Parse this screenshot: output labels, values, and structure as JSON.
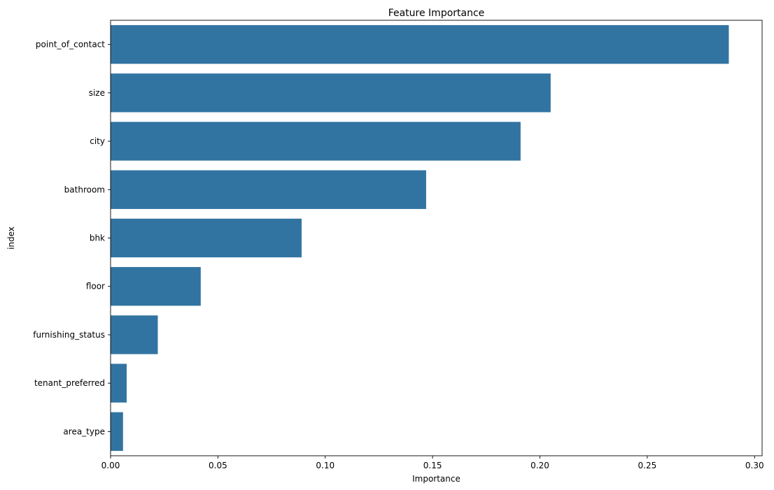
{
  "chart_data": {
    "type": "bar",
    "orientation": "horizontal",
    "title": "Feature Importance",
    "xlabel": "Importance",
    "ylabel": "index",
    "categories": [
      "point_of_contact",
      "size",
      "city",
      "bathroom",
      "bhk",
      "floor",
      "furnishing_status",
      "tenant_preferred",
      "area_type"
    ],
    "values": [
      0.288,
      0.205,
      0.191,
      0.147,
      0.089,
      0.042,
      0.022,
      0.0075,
      0.0058
    ],
    "xlim": [
      0,
      0.3035
    ],
    "xticks": [
      0.0,
      0.05,
      0.1,
      0.15,
      0.2,
      0.25,
      0.3
    ],
    "xtick_labels": [
      "0.00",
      "0.05",
      "0.10",
      "0.15",
      "0.20",
      "0.25",
      "0.30"
    ],
    "bar_color": "#3274a1",
    "grid": false,
    "legend": "none"
  }
}
